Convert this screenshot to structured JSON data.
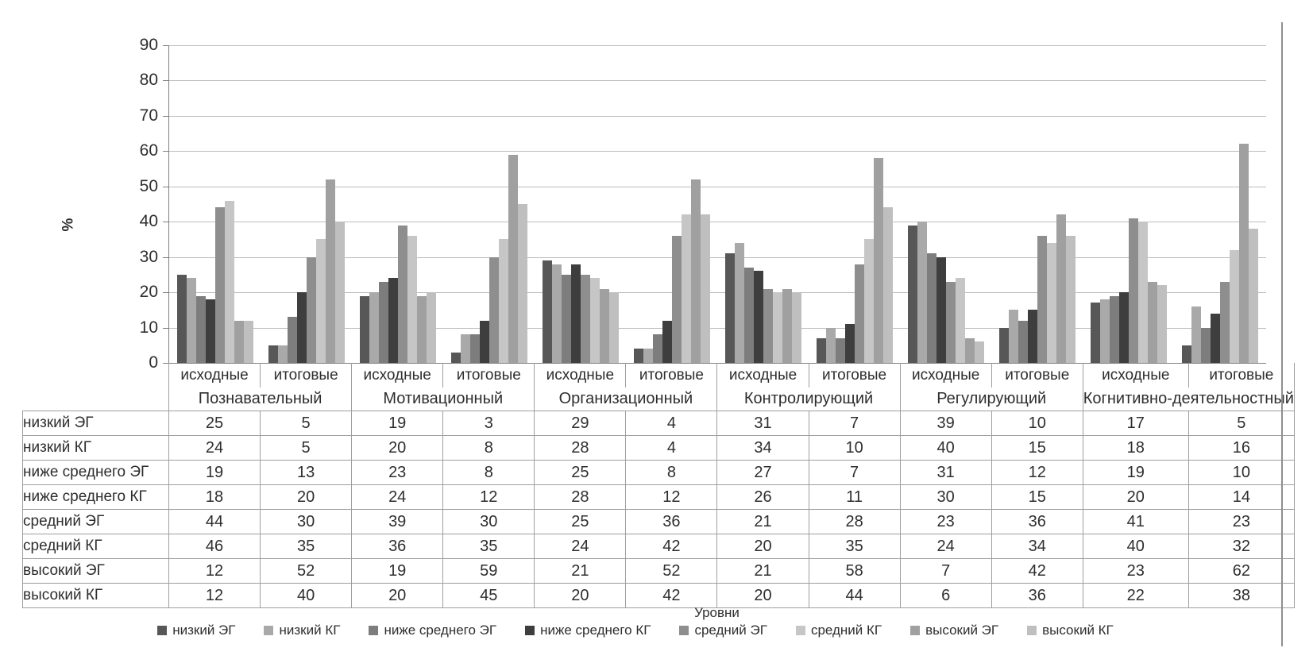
{
  "chart_data": {
    "type": "bar",
    "title": "",
    "ylabel": "%",
    "xlabel": "Уровни",
    "ylim": [
      0,
      90
    ],
    "ytick_step": 10,
    "grid": true,
    "legend_position": "bottom",
    "group_categories": [
      "Познавательный",
      "Мотивационный",
      "Организационный",
      "Контролирующий",
      "Регулирующий",
      "Когнитивно-деятельностный"
    ],
    "stage_labels": [
      "исходные",
      "итоговые"
    ],
    "series": [
      {
        "name": "низкий ЭГ",
        "color": "#575757",
        "values": [
          25,
          5,
          19,
          3,
          29,
          4,
          31,
          7,
          39,
          10,
          17,
          5
        ]
      },
      {
        "name": "низкий КГ",
        "color": "#a9a9a9",
        "values": [
          24,
          5,
          20,
          8,
          28,
          4,
          34,
          10,
          40,
          15,
          18,
          16
        ]
      },
      {
        "name": "ниже среднего ЭГ",
        "color": "#7d7d7d",
        "values": [
          19,
          13,
          23,
          8,
          25,
          8,
          27,
          7,
          31,
          12,
          19,
          10
        ]
      },
      {
        "name": "ниже среднего КГ",
        "color": "#3e3e3e",
        "values": [
          18,
          20,
          24,
          12,
          28,
          12,
          26,
          11,
          30,
          15,
          20,
          14
        ]
      },
      {
        "name": "средний ЭГ",
        "color": "#8e8e8e",
        "values": [
          44,
          30,
          39,
          30,
          25,
          36,
          21,
          28,
          23,
          36,
          41,
          23
        ]
      },
      {
        "name": "средний КГ",
        "color": "#c6c6c6",
        "values": [
          46,
          35,
          36,
          35,
          24,
          42,
          20,
          35,
          24,
          34,
          40,
          32
        ]
      },
      {
        "name": "высокий ЭГ",
        "color": "#a0a0a0",
        "values": [
          12,
          52,
          19,
          59,
          21,
          52,
          21,
          58,
          7,
          42,
          23,
          62
        ]
      },
      {
        "name": "высокий КГ",
        "color": "#bfbfbf",
        "values": [
          12,
          40,
          20,
          45,
          20,
          42,
          20,
          44,
          6,
          36,
          22,
          38
        ]
      }
    ]
  }
}
